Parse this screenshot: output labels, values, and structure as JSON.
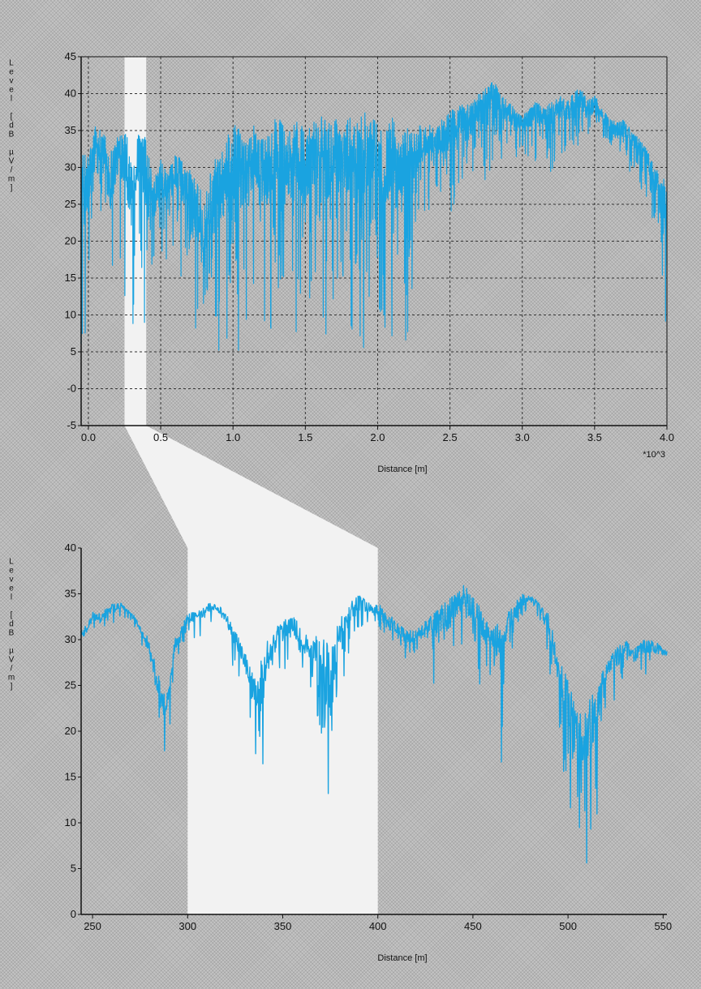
{
  "colors": {
    "trace": "#1aa3e0",
    "highlight": "#f2f2f2",
    "axis": "#111111",
    "grid": "#333333"
  },
  "chart_data": [
    {
      "type": "line",
      "xlabel": "Distance  [m]",
      "x_multiplier_label": "*10^3",
      "ylabel": "Level  [dB  µV/m]",
      "xlim": [
        -0.05,
        4.0
      ],
      "ylim": [
        -5,
        45
      ],
      "x_ticks": [
        0.0,
        0.5,
        1.0,
        1.5,
        2.0,
        2.5,
        3.0,
        3.5,
        4.0
      ],
      "x_tick_labels": [
        "0.0",
        "0.5",
        "1.0",
        "1.5",
        "2.0",
        "2.5",
        "3.0",
        "3.5",
        "4.0"
      ],
      "y_ticks": [
        -5,
        0,
        5,
        10,
        15,
        20,
        25,
        30,
        35,
        40,
        45
      ],
      "y_tick_labels": [
        "-5",
        "-0",
        "5",
        "10",
        "15",
        "20",
        "25",
        "30",
        "35",
        "40",
        "45"
      ],
      "grid": true,
      "highlight_range": [
        0.25,
        0.4
      ],
      "series": [
        {
          "x": [
            0.0,
            0.05,
            0.1,
            0.15,
            0.2,
            0.25,
            0.3,
            0.35,
            0.4,
            0.45,
            0.5,
            0.55,
            0.6,
            0.65,
            0.7,
            0.75,
            0.8,
            0.85,
            0.9,
            0.95,
            1.0,
            1.05,
            1.1,
            1.15,
            1.2,
            1.25,
            1.3,
            1.35,
            1.4,
            1.45,
            1.5,
            1.55,
            1.6,
            1.65,
            1.7,
            1.75,
            1.8,
            1.85,
            1.9,
            1.95,
            2.0,
            2.05,
            2.1,
            2.15,
            2.2,
            2.25,
            2.3,
            2.35,
            2.4,
            2.45,
            2.5,
            2.55,
            2.6,
            2.65,
            2.7,
            2.75,
            2.8,
            2.85,
            2.9,
            2.95,
            3.0,
            3.05,
            3.1,
            3.15,
            3.2,
            3.25,
            3.3,
            3.35,
            3.4,
            3.45,
            3.5,
            3.55,
            3.6,
            3.65,
            3.7,
            3.75,
            3.8,
            3.85,
            3.9,
            3.95,
            4.0
          ],
          "upper": [
            32,
            36,
            35,
            33,
            34,
            37,
            30,
            35,
            34,
            28,
            31,
            29,
            32,
            31,
            30,
            28,
            26,
            30,
            32,
            34,
            36,
            35,
            33,
            36,
            34,
            35,
            37,
            36,
            35,
            37,
            35,
            36,
            38,
            36,
            37,
            35,
            37,
            36,
            38,
            37,
            36,
            35,
            37,
            34,
            36,
            35,
            36,
            36,
            35,
            37,
            38,
            38,
            39,
            39,
            40,
            41,
            42,
            40,
            39,
            38,
            37,
            38,
            39,
            38,
            39,
            40,
            39,
            40,
            41,
            39,
            40,
            38,
            37,
            36,
            37,
            35,
            34,
            33,
            31,
            29,
            28
          ],
          "lower": [
            6,
            22,
            24,
            6,
            20,
            12,
            6,
            22,
            4,
            14,
            18,
            16,
            20,
            14,
            18,
            6,
            4,
            3,
            4,
            6,
            8,
            4,
            10,
            14,
            8,
            6,
            12,
            14,
            5,
            8,
            3,
            16,
            14,
            4,
            12,
            16,
            6,
            8,
            4,
            12,
            10,
            8,
            6,
            14,
            4,
            16,
            22,
            24,
            26,
            22,
            23,
            26,
            28,
            26,
            29,
            28,
            30,
            31,
            30,
            31,
            32,
            31,
            30,
            32,
            29,
            32,
            31,
            30,
            33,
            32,
            33,
            32,
            31,
            31,
            30,
            29,
            28,
            26,
            22,
            18,
            6
          ]
        }
      ]
    },
    {
      "type": "line",
      "xlabel": "Distance  [m]",
      "ylabel": "Level  [dB  µV/m]",
      "xlim": [
        244,
        552
      ],
      "ylim": [
        0,
        40
      ],
      "x_ticks": [
        250,
        300,
        350,
        400,
        450,
        500,
        550
      ],
      "x_tick_labels": [
        "250",
        "300",
        "350",
        "400",
        "450",
        "500",
        "550"
      ],
      "y_ticks": [
        0,
        5,
        10,
        15,
        20,
        25,
        30,
        35,
        40
      ],
      "y_tick_labels": [
        "0",
        "5",
        "10",
        "15",
        "20",
        "25",
        "30",
        "35",
        "40"
      ],
      "grid": false,
      "highlight_range": [
        300,
        400
      ],
      "series": [
        {
          "x": [
            245,
            250,
            255,
            260,
            265,
            270,
            275,
            278,
            281,
            284,
            287,
            290,
            293,
            296,
            300,
            305,
            310,
            315,
            320,
            325,
            330,
            333,
            336,
            339,
            342,
            345,
            350,
            355,
            360,
            365,
            370,
            373,
            375,
            377,
            379,
            382,
            385,
            390,
            395,
            400,
            405,
            410,
            415,
            420,
            425,
            430,
            435,
            440,
            445,
            450,
            455,
            460,
            463,
            465,
            468,
            472,
            476,
            480,
            485,
            490,
            495,
            500,
            503,
            506,
            509,
            512,
            515,
            518,
            521,
            525,
            530,
            535,
            540,
            545,
            550
          ],
          "upper": [
            31,
            33,
            33,
            34,
            34,
            33,
            32,
            31,
            29,
            27,
            24,
            25,
            30,
            31,
            33,
            33,
            34,
            34,
            33,
            31,
            29,
            27,
            26,
            28,
            30,
            31,
            32,
            33,
            31,
            30,
            31,
            30,
            29,
            31,
            32,
            33,
            34,
            35,
            34,
            34,
            33,
            32,
            31,
            31,
            32,
            33,
            34,
            35,
            36,
            35,
            33,
            31,
            32,
            31,
            33,
            34,
            35,
            35,
            34,
            33,
            28,
            26,
            24,
            23,
            22,
            24,
            26,
            27,
            28,
            29,
            30,
            29,
            30,
            30,
            29
          ],
          "lower": [
            29,
            30,
            31,
            31,
            32,
            32,
            29,
            27,
            24,
            20,
            15,
            19,
            26,
            28,
            30,
            30,
            31,
            32,
            30,
            26,
            23,
            20,
            17,
            14,
            20,
            24,
            26,
            27,
            25,
            23,
            16,
            9,
            6,
            12,
            20,
            25,
            27,
            30,
            31,
            31,
            28,
            27,
            27,
            28,
            27,
            25,
            24,
            25,
            27,
            26,
            24,
            25,
            18,
            16,
            26,
            29,
            32,
            33,
            32,
            24,
            20,
            11,
            8,
            4,
            6,
            4,
            10,
            18,
            22,
            23,
            24,
            25,
            26,
            26,
            27
          ]
        }
      ]
    }
  ]
}
